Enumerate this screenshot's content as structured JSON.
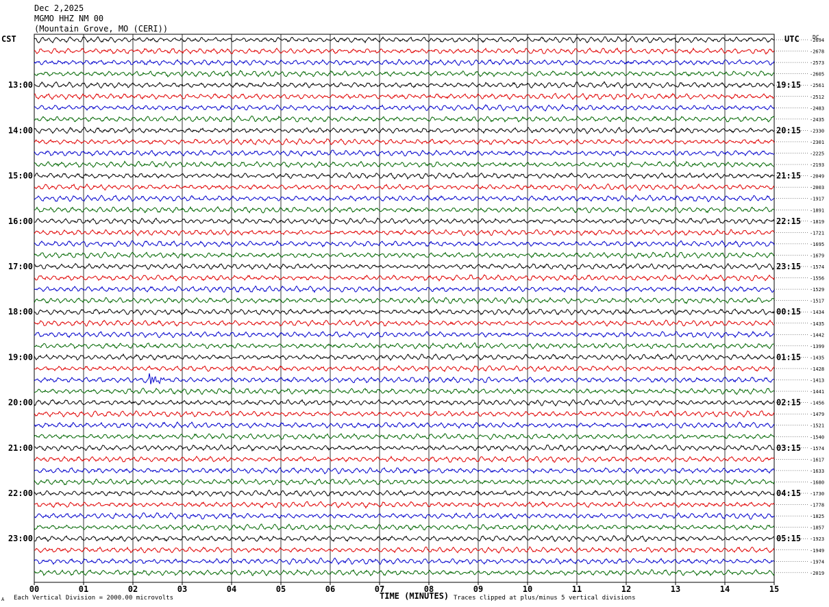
{
  "header": {
    "date": "Dec 2,2025",
    "station": "MGMO HHZ NM 00",
    "location": "(Mountain Grove, MO (CERI))"
  },
  "corner_labels": {
    "left": "CST",
    "right": "UTC",
    "dc": "DC"
  },
  "footer": {
    "scale_note": "Each Vertical Division = 2000.00 microvolts",
    "clip_note": "Traces clipped at plus/minus 5 vertical divisions",
    "mark": "A"
  },
  "chart_data": {
    "type": "line",
    "title": "MGMO HHZ NM 00",
    "xlabel": "TIME (MINUTES)",
    "xlim": [
      0,
      15
    ],
    "x_ticks": [
      "00",
      "01",
      "02",
      "03",
      "04",
      "05",
      "06",
      "07",
      "08",
      "09",
      "10",
      "11",
      "12",
      "13",
      "14",
      "15"
    ],
    "left_hour_labels": [
      "13:00",
      "14:00",
      "15:00",
      "16:00",
      "17:00",
      "18:00",
      "19:00",
      "20:00",
      "21:00",
      "22:00",
      "23:00"
    ],
    "right_hour_labels": [
      "19:15",
      "20:15",
      "21:15",
      "22:15",
      "23:15",
      "00:15",
      "01:15",
      "02:15",
      "03:15",
      "04:15",
      "05:15"
    ],
    "dc_offsets": [
      "-2694",
      "-2678",
      "-2573",
      "-2605",
      "-2561",
      "-2512",
      "-2483",
      "-2435",
      "-2330",
      "-2301",
      "-2225",
      "-2193",
      "-2049",
      "-2003",
      "-1917",
      "-1891",
      "-1819",
      "-1721",
      "-1695",
      "-1679",
      "-1574",
      "-1556",
      "-1529",
      "-1517",
      "-1434",
      "-1435",
      "-1442",
      "-1399",
      "-1435",
      "-1428",
      "-1413",
      "-1441",
      "-1456",
      "-1479",
      "-1521",
      "-1540",
      "-1574",
      "-1617",
      "-1633",
      "-1680",
      "-1730",
      "-1778",
      "-1825",
      "-1857",
      "-1923",
      "-1949",
      "-1974",
      "-2019"
    ],
    "trace_colors": [
      "#000000",
      "#e00000",
      "#0000cc",
      "#006600"
    ],
    "grid": "vertical",
    "events": [
      {
        "trace_index": 30,
        "minute": 2.35,
        "label": ""
      }
    ]
  }
}
